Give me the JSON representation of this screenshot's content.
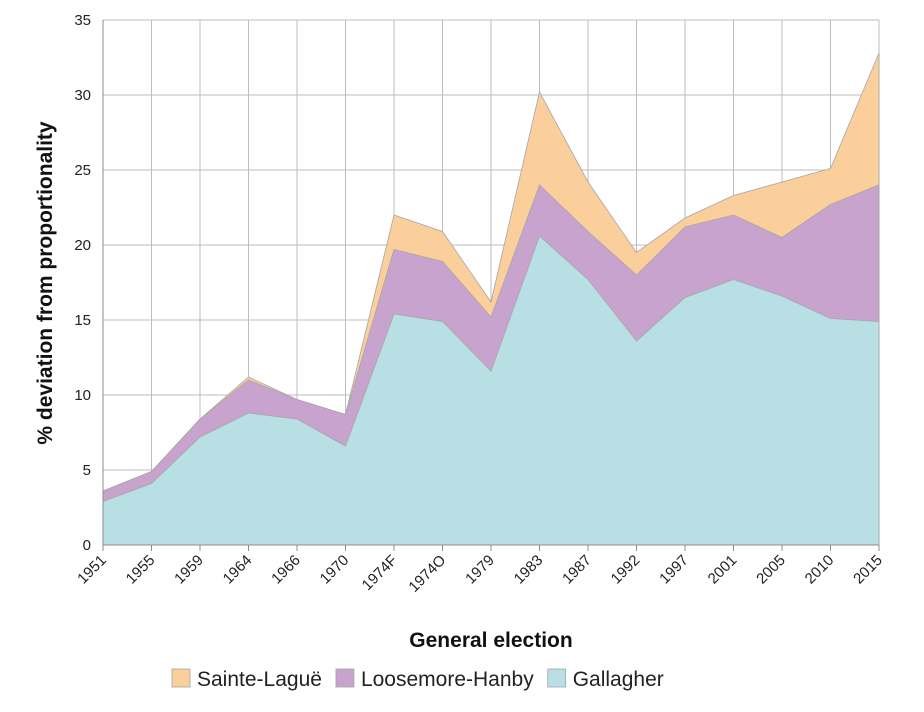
{
  "chart_data": {
    "type": "area",
    "stacked": true,
    "xlabel": "General election",
    "ylabel": "% deviation from proportionality",
    "ylim": [
      0,
      35
    ],
    "yticks": [
      0,
      5,
      10,
      15,
      20,
      25,
      30,
      35
    ],
    "grid": true,
    "legend_position": "bottom",
    "categories": [
      "1951",
      "1955",
      "1959",
      "1964",
      "1966",
      "1970",
      "1974F",
      "1974O",
      "1979",
      "1983",
      "1987",
      "1992",
      "1997",
      "2001",
      "2005",
      "2010",
      "2015"
    ],
    "series": [
      {
        "name": "Gallagher",
        "color": "#b7dfe4",
        "values": [
          2.9,
          4.1,
          7.2,
          8.8,
          8.4,
          6.6,
          15.4,
          14.9,
          11.6,
          20.6,
          17.7,
          13.6,
          16.5,
          17.7,
          16.6,
          15.1,
          14.9
        ]
      },
      {
        "name": "Loosemore-Hanby",
        "color": "#c8a3cd",
        "values": [
          3.6,
          4.9,
          8.4,
          11.0,
          9.7,
          8.7,
          19.7,
          18.9,
          15.2,
          24.0,
          20.9,
          18.0,
          21.2,
          22.0,
          20.5,
          22.7,
          24.0
        ]
      },
      {
        "name": "Sainte-Laguë",
        "color": "#fbcf9c",
        "values": [
          3.6,
          4.9,
          8.4,
          11.2,
          9.7,
          8.7,
          22.0,
          20.9,
          16.2,
          30.2,
          24.2,
          19.5,
          21.8,
          23.3,
          24.2,
          25.1,
          32.8
        ]
      }
    ]
  }
}
